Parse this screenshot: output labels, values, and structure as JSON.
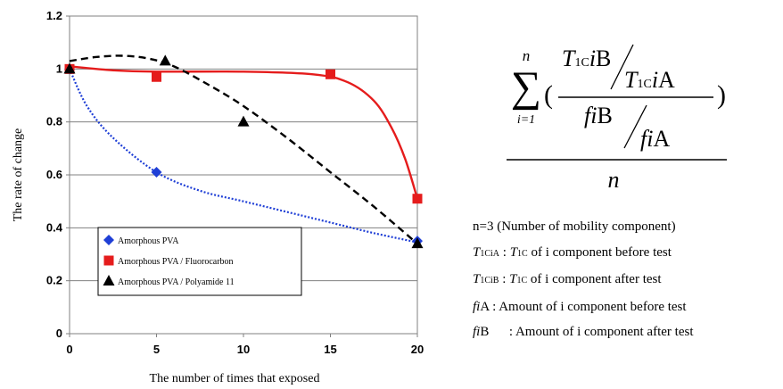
{
  "chart_data": {
    "type": "scatter",
    "xlabel": "The number of times that exposed",
    "ylabel": "The rate of change",
    "xlim": [
      0,
      20
    ],
    "ylim": [
      0,
      1.2
    ],
    "x_ticks": [
      0,
      5,
      10,
      15,
      20
    ],
    "y_ticks": [
      0,
      0.2,
      0.4,
      0.6,
      0.8,
      1,
      1.2
    ],
    "y_tick_labels": [
      "0",
      "0.2",
      "0.4",
      "0.6",
      "0.8",
      "1",
      "1.2"
    ],
    "grid": "horizontal",
    "legend_position": "bottom-left",
    "series": [
      {
        "name": "Amorphous PVA",
        "color": "#1f3fd6",
        "marker": "diamond",
        "line_style": "dotted",
        "points": [
          [
            0,
            1.0
          ],
          [
            5,
            0.61
          ],
          [
            20,
            0.35
          ]
        ],
        "trend": [
          [
            0,
            1.0
          ],
          [
            1,
            0.86
          ],
          [
            2.5,
            0.74
          ],
          [
            5,
            0.61
          ],
          [
            7.5,
            0.54
          ],
          [
            10,
            0.5
          ],
          [
            12.5,
            0.46
          ],
          [
            15,
            0.42
          ],
          [
            17.5,
            0.38
          ],
          [
            20,
            0.345
          ]
        ]
      },
      {
        "name": "Amorphous PVA / Fluorocarbon",
        "color": "#e51c1c",
        "marker": "square",
        "line_style": "solid",
        "points": [
          [
            0,
            1.0
          ],
          [
            5,
            0.97
          ],
          [
            15,
            0.98
          ],
          [
            20,
            0.51
          ]
        ],
        "trend": [
          [
            0,
            1.01
          ],
          [
            2.5,
            0.995
          ],
          [
            5,
            0.99
          ],
          [
            10,
            0.99
          ],
          [
            14,
            0.98
          ],
          [
            16,
            0.95
          ],
          [
            17.5,
            0.88
          ],
          [
            18.5,
            0.78
          ],
          [
            19.3,
            0.66
          ],
          [
            20,
            0.51
          ]
        ]
      },
      {
        "name": "Amorphous PVA / Polyamide 11",
        "color": "#000000",
        "marker": "triangle",
        "line_style": "dashed",
        "points": [
          [
            0,
            1.0
          ],
          [
            5.5,
            1.03
          ],
          [
            10,
            0.8
          ],
          [
            20,
            0.34
          ]
        ],
        "trend": [
          [
            0,
            1.03
          ],
          [
            1.5,
            1.045
          ],
          [
            3,
            1.05
          ],
          [
            4.5,
            1.04
          ],
          [
            6,
            1.01
          ],
          [
            8,
            0.94
          ],
          [
            10,
            0.86
          ],
          [
            12.5,
            0.74
          ],
          [
            15,
            0.61
          ],
          [
            17.5,
            0.48
          ],
          [
            20,
            0.34
          ]
        ]
      }
    ]
  },
  "formula": {
    "sum_symbol": "∑",
    "upper_limit": "n",
    "lower_limit": "i=1",
    "open_paren": "(",
    "close_paren": ")",
    "T": "T",
    "sub_1C": "1C",
    "i": "i",
    "B": "B",
    "A": "A",
    "f": "f",
    "denominator": "n"
  },
  "notes": {
    "n_line": "n=3 (Number of mobility component)",
    "t1cia_T": "T",
    "t1cia_sub": "1CiA",
    "t1cia_text": " : ",
    "t1cia_T2": "T",
    "t1cia_sub2": "1C",
    "t1cia_rest": " of i component before test",
    "t1cib_T": "T",
    "t1cib_sub": "1CiB",
    "t1cib_text": " : ",
    "t1cib_T2": "T",
    "t1cib_sub2": "1C",
    "t1cib_rest": " of i component after test",
    "fia_label": "fi",
    "fia_suffix": "A",
    "fia_rest": " : Amount of i component before test",
    "fib_label": "fi",
    "fib_suffix": "B",
    "fib_rest": "      : Amount of i component after test"
  }
}
